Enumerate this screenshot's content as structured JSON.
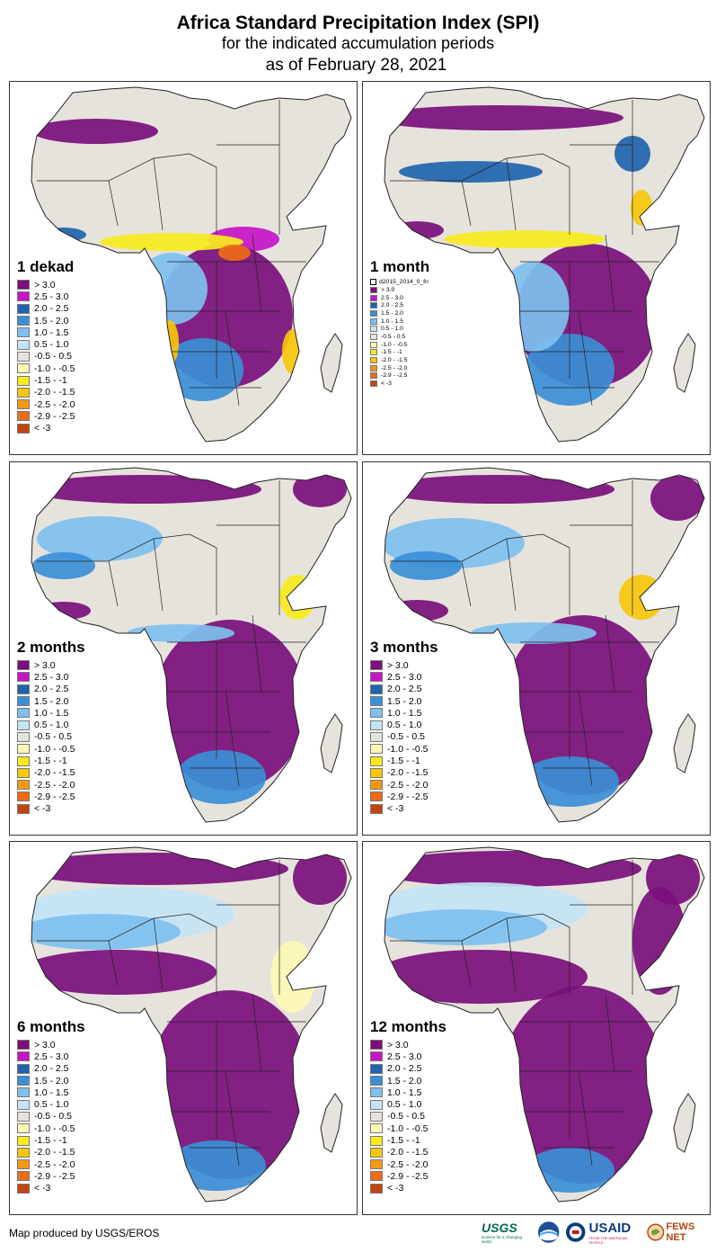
{
  "title": "Africa Standard Precipitation Index (SPI)",
  "subtitle": "for the indicated accumulation periods",
  "date_line": "as of February 28, 2021",
  "colors": {
    "ocean": "#ffffff",
    "land_dry_neutral": "#e6e3dc",
    "border": "#222222"
  },
  "legend_classes": [
    {
      "label": "> 3.0",
      "color": "#7b0f7b"
    },
    {
      "label": "2.5 - 3.0",
      "color": "#c515c5"
    },
    {
      "label": "2.0 - 2.5",
      "color": "#1f64ad"
    },
    {
      "label": "1.5 - 2.0",
      "color": "#3b8fd6"
    },
    {
      "label": "1.0 - 1.5",
      "color": "#7ec0ee"
    },
    {
      "label": "0.5 - 1.0",
      "color": "#c4e4f6"
    },
    {
      "label": "-0.5 - 0.5",
      "color": "#e6e3dc"
    },
    {
      "label": "-1.0 - -0.5",
      "color": "#fdf9b4"
    },
    {
      "label": "-1.5 - -1",
      "color": "#f8ea1c"
    },
    {
      "label": "-2.0 - -1.5",
      "color": "#f7c70a"
    },
    {
      "label": "-2.5 - -2.0",
      "color": "#f49a12"
    },
    {
      "label": "-2.9 - -2.5",
      "color": "#ee6b18"
    },
    {
      "label": "< -3",
      "color": "#c24510"
    }
  ],
  "panels": [
    {
      "id": "1-dekad",
      "label": "1 dekad",
      "legend_style": "large"
    },
    {
      "id": "1-month",
      "label": "1 month",
      "legend_style": "small",
      "legend_note": "d2015_2014_0_fn"
    },
    {
      "id": "2-months",
      "label": "2 months",
      "legend_style": "large"
    },
    {
      "id": "3-months",
      "label": "3 months",
      "legend_style": "large"
    },
    {
      "id": "6-months",
      "label": "6 months",
      "legend_style": "large"
    },
    {
      "id": "12-months",
      "label": "12 months",
      "legend_style": "large"
    }
  ],
  "footer": "Map produced by USGS/EROS",
  "logos": {
    "usgs": "USGS",
    "usgs_tagline": "science for a changing world",
    "usaid": "USAID",
    "usaid_tagline": "FROM THE AMERICAN PEOPLE",
    "fewsnet": "FEWS NET"
  }
}
